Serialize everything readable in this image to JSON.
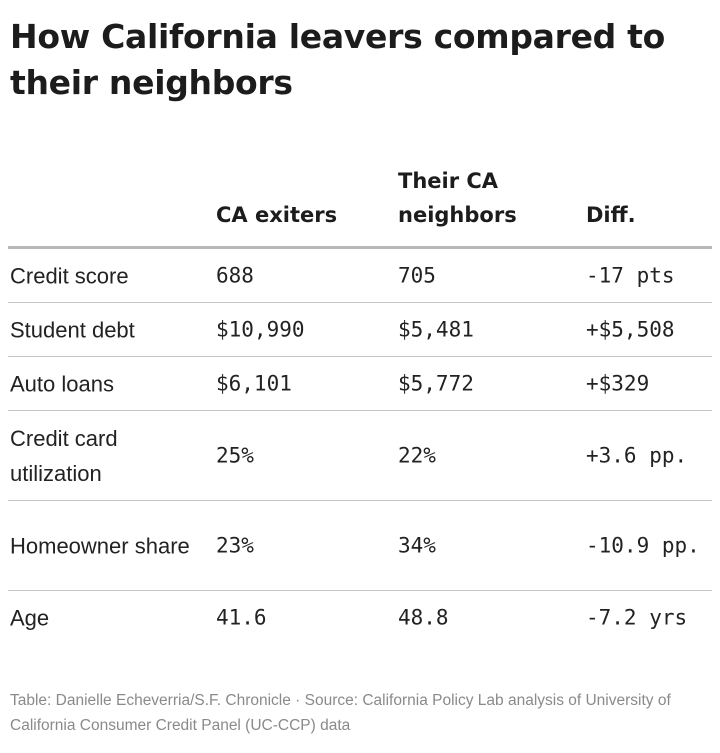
{
  "title": "How California leavers compared to their neighbors",
  "chart_data": {
    "type": "table",
    "title": "How California leavers compared to their neighbors",
    "columns": [
      "",
      "CA exiters",
      "Their CA neighbors",
      "Diff."
    ],
    "rows": [
      {
        "label": "Credit score",
        "values": [
          "688",
          "705",
          "-17 pts"
        ]
      },
      {
        "label": "Student debt",
        "values": [
          "$10,990",
          "$5,481",
          "+$5,508"
        ]
      },
      {
        "label": "Auto loans",
        "values": [
          "$6,101",
          "$5,772",
          "+$329"
        ]
      },
      {
        "label": "Credit card utilization",
        "values": [
          "25%",
          "22%",
          "+3.6 pp."
        ]
      },
      {
        "label": "Homeowner share",
        "values": [
          "23%",
          "34%",
          "-10.9 pp."
        ]
      },
      {
        "label": "Age",
        "values": [
          "41.6",
          "48.8",
          "-7.2 yrs"
        ]
      }
    ]
  },
  "footer": {
    "credit": "Table: Danielle Echeverria/S.F. Chronicle · Source: California Policy Lab analysis of University of California Consumer Credit Panel (UC-CCP) data"
  },
  "colors": {
    "title": "#1c1c1c",
    "text": "#222222",
    "footer": "#8a8a8a",
    "header_rule": "#b8b8b8",
    "row_rule": "#c4c4c4"
  }
}
